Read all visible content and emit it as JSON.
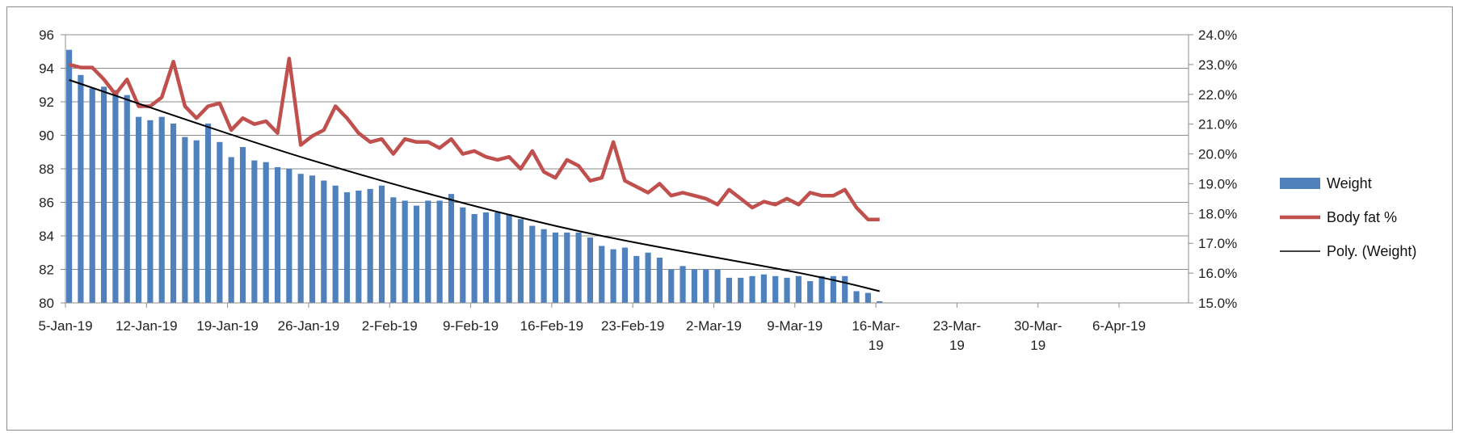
{
  "chart_data": {
    "type": "bar",
    "title": "",
    "xlabel": "",
    "ylabel": "",
    "y2label": "",
    "grid": true,
    "legend": "right",
    "x_range": [
      "2019-01-05",
      "2019-04-12"
    ],
    "ylim": [
      80,
      96
    ],
    "y_ticks": [
      "80",
      "82",
      "84",
      "86",
      "88",
      "90",
      "92",
      "94",
      "96"
    ],
    "y2lim": [
      15.0,
      24.0
    ],
    "y2_ticks": [
      "15.0%",
      "16.0%",
      "17.0%",
      "18.0%",
      "19.0%",
      "20.0%",
      "21.0%",
      "22.0%",
      "23.0%",
      "24.0%"
    ],
    "x_ticks": [
      {
        "date": "2019-01-05",
        "label": "5-Jan-19"
      },
      {
        "date": "2019-01-12",
        "label": "12-Jan-19"
      },
      {
        "date": "2019-01-19",
        "label": "19-Jan-19"
      },
      {
        "date": "2019-01-26",
        "label": "26-Jan-19"
      },
      {
        "date": "2019-02-02",
        "label": "2-Feb-19"
      },
      {
        "date": "2019-02-09",
        "label": "9-Feb-19"
      },
      {
        "date": "2019-02-16",
        "label": "16-Feb-19"
      },
      {
        "date": "2019-02-23",
        "label": "23-Feb-19"
      },
      {
        "date": "2019-03-02",
        "label": "2-Mar-19"
      },
      {
        "date": "2019-03-09",
        "label": "9-Mar-19"
      },
      {
        "date": "2019-03-16",
        "label": "16-Mar-\n19"
      },
      {
        "date": "2019-03-23",
        "label": "23-Mar-\n19"
      },
      {
        "date": "2019-03-30",
        "label": "30-Mar-\n19"
      },
      {
        "date": "2019-04-06",
        "label": "6-Apr-19"
      }
    ],
    "series": [
      {
        "name": "Weight",
        "type": "bar",
        "axis": "left",
        "color": "#4f81bd",
        "start_date": "2019-01-05",
        "values": [
          95.1,
          93.6,
          92.8,
          92.9,
          92.7,
          92.4,
          91.1,
          90.9,
          91.1,
          90.7,
          89.9,
          89.7,
          90.7,
          89.6,
          88.7,
          89.3,
          88.5,
          88.4,
          88.1,
          88.0,
          87.7,
          87.6,
          87.3,
          87.0,
          86.6,
          86.7,
          86.8,
          87.0,
          86.3,
          86.1,
          85.8,
          86.1,
          86.1,
          86.5,
          85.7,
          85.3,
          85.4,
          85.4,
          85.3,
          85.0,
          84.6,
          84.4,
          84.2,
          84.2,
          84.2,
          83.9,
          83.4,
          83.2,
          83.3,
          82.8,
          83.0,
          82.7,
          82.0,
          82.2,
          82.0,
          82.0,
          82.0,
          81.5,
          81.5,
          81.6,
          81.7,
          81.6,
          81.5,
          81.6,
          81.3,
          81.6,
          81.6,
          81.6,
          80.7,
          80.6,
          80.1,
          80.0
        ]
      },
      {
        "name": "Body fat %",
        "type": "line",
        "axis": "right",
        "color": "#c0504d",
        "start_date": "2019-01-05",
        "values": [
          23.0,
          22.9,
          22.9,
          22.5,
          22.0,
          22.5,
          21.6,
          21.6,
          21.9,
          23.1,
          21.6,
          21.2,
          21.6,
          21.7,
          20.8,
          21.2,
          21.0,
          21.1,
          20.7,
          23.2,
          20.3,
          20.6,
          20.8,
          21.6,
          21.2,
          20.7,
          20.4,
          20.5,
          20.0,
          20.5,
          20.4,
          20.4,
          20.2,
          20.5,
          20.0,
          20.1,
          19.9,
          19.8,
          19.9,
          19.5,
          20.1,
          19.4,
          19.2,
          19.8,
          19.6,
          19.1,
          19.2,
          20.4,
          19.1,
          18.9,
          18.7,
          19.0,
          18.6,
          18.7,
          18.6,
          18.5,
          18.3,
          18.8,
          18.5,
          18.2,
          18.4,
          18.3,
          18.5,
          18.3,
          18.7,
          18.6,
          18.6,
          18.8,
          18.2,
          17.8,
          17.8
        ]
      },
      {
        "name": "Poly. (Weight)",
        "type": "line",
        "axis": "left",
        "color": "#000000",
        "points": [
          {
            "date": "2019-01-05",
            "y": 93.3
          },
          {
            "date": "2019-01-26",
            "y": 88.5
          },
          {
            "date": "2019-02-16",
            "y": 84.6
          },
          {
            "date": "2019-03-09",
            "y": 81.8
          },
          {
            "date": "2019-03-16",
            "y": 80.7
          }
        ]
      }
    ]
  }
}
